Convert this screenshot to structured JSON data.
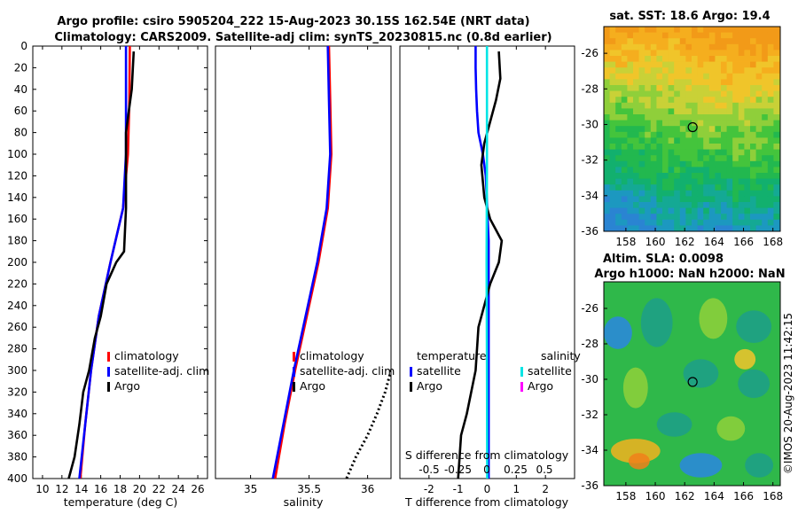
{
  "title": {
    "line1": "Argo profile: csiro 5905204_222 15-Aug-2023 30.15S 162.54E (NRT data)",
    "line2": "Climatology: CARS2009. Satellite-adj clim: synTS_20230815.nc (0.8d earlier)"
  },
  "footer_stamp": "©IMOS 20-Aug-2023 11:42:15",
  "colors": {
    "climatology": "#ff0000",
    "satellite": "#0000ff",
    "argo": "#000000",
    "salinity_satellite": "#00e5e5",
    "salinity_argo": "#ff00ff"
  },
  "chart_data": [
    {
      "id": "temperature",
      "type": "line",
      "xlabel": "temperature (deg C)",
      "xlim": [
        9,
        27
      ],
      "xticks": [
        10,
        12,
        14,
        16,
        18,
        20,
        22,
        24,
        26
      ],
      "ylim": [
        0,
        400
      ],
      "yreversed": true,
      "yticks": [
        0,
        20,
        40,
        60,
        80,
        100,
        120,
        140,
        160,
        180,
        200,
        220,
        240,
        260,
        280,
        300,
        320,
        340,
        360,
        380,
        400
      ],
      "legend": [
        "climatology",
        "satellite-adj. clim",
        "Argo"
      ],
      "series": [
        {
          "name": "climatology",
          "color": "#ff0000",
          "depth": [
            0,
            50,
            100,
            150,
            200,
            250,
            300,
            350,
            400
          ],
          "values": [
            19.0,
            18.95,
            18.8,
            18.3,
            17.0,
            15.8,
            15.0,
            14.4,
            13.9
          ]
        },
        {
          "name": "satellite-adj. clim",
          "color": "#0000ff",
          "depth": [
            0,
            50,
            100,
            150,
            200,
            250,
            300,
            350,
            400
          ],
          "values": [
            18.6,
            18.6,
            18.6,
            18.3,
            17.0,
            15.8,
            15.0,
            14.4,
            13.8
          ]
        },
        {
          "name": "Argo",
          "color": "#000000",
          "depth": [
            5,
            40,
            60,
            80,
            100,
            150,
            190,
            200,
            220,
            250,
            270,
            300,
            320,
            350,
            380,
            400
          ],
          "values": [
            19.4,
            19.2,
            18.9,
            18.6,
            18.6,
            18.6,
            18.4,
            17.6,
            16.6,
            16.0,
            15.4,
            14.8,
            14.2,
            13.8,
            13.3,
            12.7
          ]
        }
      ]
    },
    {
      "id": "salinity",
      "type": "line",
      "xlabel": "salinity",
      "xlim": [
        34.7,
        36.2
      ],
      "xticks": [
        35,
        35.5,
        36
      ],
      "ylim": [
        0,
        400
      ],
      "yreversed": true,
      "legend": [
        "climatology",
        "satellite-adj. clim",
        "Argo"
      ],
      "series": [
        {
          "name": "climatology",
          "color": "#ff0000",
          "depth": [
            0,
            50,
            100,
            150,
            200,
            250,
            300,
            350,
            400
          ],
          "values": [
            35.67,
            35.68,
            35.69,
            35.66,
            35.58,
            35.48,
            35.38,
            35.29,
            35.21
          ]
        },
        {
          "name": "satellite-adj. clim",
          "color": "#0000ff",
          "depth": [
            0,
            50,
            100,
            150,
            200,
            250,
            300,
            350,
            400
          ],
          "values": [
            35.66,
            35.67,
            35.68,
            35.65,
            35.57,
            35.47,
            35.37,
            35.28,
            35.19
          ]
        },
        {
          "name": "Argo",
          "color": "#000000",
          "depth": [
            300,
            320,
            340,
            360,
            380,
            400
          ],
          "values": [
            36.2,
            36.15,
            36.08,
            36.0,
            35.9,
            35.82
          ]
        }
      ]
    },
    {
      "id": "differences",
      "type": "line",
      "xlabel": "T difference from climatology",
      "xlim": [
        -3,
        3
      ],
      "xticks": [
        -2,
        -1,
        0,
        1,
        2
      ],
      "top_axis_label": "S difference from climatology",
      "top_ticks": [
        "-0.5",
        "-0.25",
        "0",
        "0.25",
        "0.5"
      ],
      "ylim": [
        0,
        400
      ],
      "yreversed": true,
      "legend_temperature_heading": "temperature",
      "legend_salinity_heading": "salinity",
      "legend_temperature": [
        "satellite",
        "Argo"
      ],
      "legend_salinity": [
        "satellite",
        "Argo"
      ],
      "series": [
        {
          "name": "temperature satellite",
          "color": "#0000ff",
          "depth": [
            0,
            20,
            40,
            60,
            80,
            100,
            120,
            150,
            180,
            200,
            250,
            300,
            350,
            400
          ],
          "values": [
            -0.4,
            -0.4,
            -0.38,
            -0.35,
            -0.3,
            -0.15,
            -0.05,
            0.0,
            0.05,
            0.05,
            0.05,
            0.05,
            0.05,
            0.05
          ]
        },
        {
          "name": "temperature Argo",
          "color": "#000000",
          "depth": [
            5,
            30,
            50,
            70,
            90,
            110,
            140,
            160,
            180,
            200,
            220,
            260,
            300,
            340,
            360,
            400
          ],
          "values": [
            0.4,
            0.45,
            0.3,
            0.1,
            -0.1,
            -0.2,
            -0.1,
            0.1,
            0.5,
            0.4,
            0.1,
            -0.3,
            -0.4,
            -0.7,
            -0.9,
            -1.0
          ]
        },
        {
          "name": "salinity satellite",
          "color": "#00e5e5",
          "depth": [
            0,
            100,
            200,
            300,
            400
          ],
          "values": [
            -0.01,
            -0.01,
            -0.02,
            -0.01,
            0.0
          ]
        }
      ]
    },
    {
      "id": "sat_sst_map",
      "type": "heatmap",
      "title": "sat. SST: 18.6 Argo: 19.4",
      "xticks": [
        158,
        160,
        162,
        164,
        166,
        168
      ],
      "yticks": [
        -26,
        -28,
        -30,
        -32,
        -34,
        -36
      ],
      "xlim": [
        156.5,
        168.5
      ],
      "ylim": [
        -36,
        -24.5
      ],
      "argo_position": {
        "lon": 162.54,
        "lat": -30.15
      }
    },
    {
      "id": "sla_map",
      "type": "heatmap",
      "title_line1": "Altim. SLA: 0.0098",
      "title_line2": "Argo h1000: NaN h2000: NaN",
      "xticks": [
        158,
        160,
        162,
        164,
        166,
        168
      ],
      "yticks": [
        -26,
        -28,
        -30,
        -32,
        -34,
        -36
      ],
      "xlim": [
        156.5,
        168.5
      ],
      "ylim": [
        -36,
        -24.5
      ],
      "argo_position": {
        "lon": 162.54,
        "lat": -30.15
      }
    }
  ]
}
